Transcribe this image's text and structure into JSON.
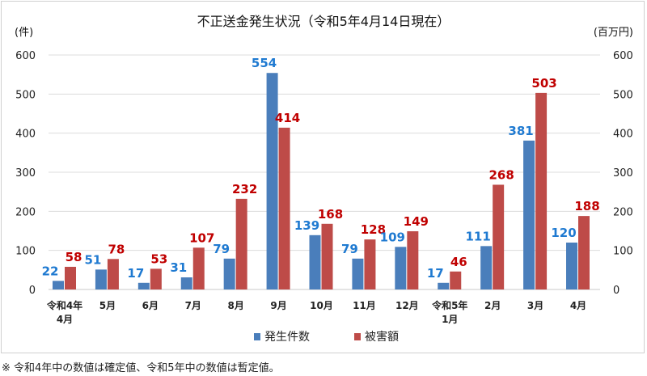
{
  "chart_data": {
    "type": "bar",
    "title": "不正送金発生状況（令和5年4月14日現在）",
    "ylabel_left": "(件)",
    "ylabel_right": "(百万円)",
    "ylim": [
      0,
      600
    ],
    "yticks": [
      0,
      100,
      200,
      300,
      400,
      500,
      600
    ],
    "categories": [
      [
        "令和4年",
        "4月"
      ],
      [
        "5月"
      ],
      [
        "6月"
      ],
      [
        "7月"
      ],
      [
        "8月"
      ],
      [
        "9月"
      ],
      [
        "10月"
      ],
      [
        "11月"
      ],
      [
        "12月"
      ],
      [
        "令和5年",
        "1月"
      ],
      [
        "2月"
      ],
      [
        "3月"
      ],
      [
        "4月"
      ]
    ],
    "series": [
      {
        "name": "発生件数",
        "color": "#4a7ebb",
        "label_color": "#1f7ad1",
        "values": [
          22,
          51,
          17,
          31,
          79,
          554,
          139,
          79,
          109,
          17,
          111,
          381,
          120
        ]
      },
      {
        "name": "被害額",
        "color": "#be4b48",
        "label_color": "#c00000",
        "values": [
          58,
          78,
          53,
          107,
          232,
          414,
          168,
          128,
          149,
          46,
          268,
          503,
          188
        ]
      }
    ],
    "legend_position": "bottom",
    "grid": true
  },
  "footnote": "※ 令和4年中の数値は確定値、令和5年中の数値は暫定値。"
}
